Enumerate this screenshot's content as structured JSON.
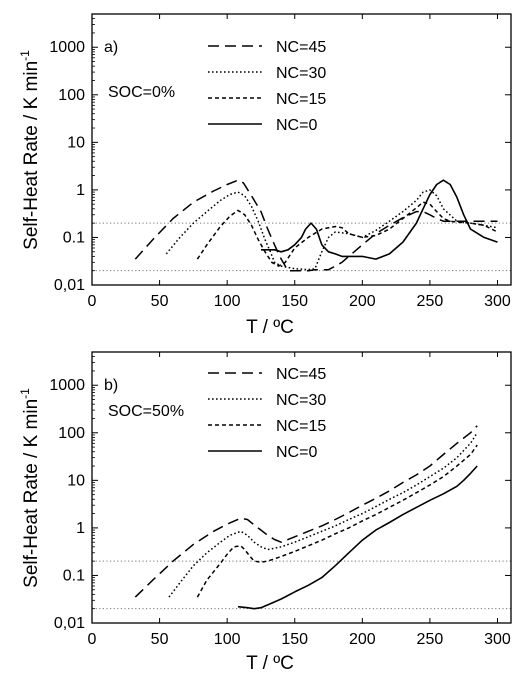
{
  "chart_data": [
    {
      "type": "line",
      "panel_label": "a)",
      "annotation": "SOC=0%",
      "xlabel": "T / ºC",
      "ylabel": "Self-Heat Rate / K min",
      "ylabel_exp": "-1",
      "xlim": [
        0,
        310
      ],
      "ylim": [
        0.01,
        5000
      ],
      "yscale": "log",
      "x_ticks": [
        "0",
        "50",
        "100",
        "150",
        "200",
        "250",
        "300"
      ],
      "y_ticks": [
        "0,01",
        "0.1",
        "1",
        "10",
        "100",
        "1000"
      ],
      "legend_position": "top-center",
      "reference_lines": [
        0.2,
        0.02
      ],
      "series": [
        {
          "name": "NC=45",
          "style": "dashed",
          "x": [
            32,
            45,
            60,
            75,
            90,
            100,
            108,
            112,
            118,
            125,
            130,
            135,
            140,
            145,
            150,
            155,
            160,
            165,
            170,
            175,
            180,
            185,
            190,
            200,
            210,
            220,
            230,
            240,
            245,
            250,
            255,
            260,
            270,
            280,
            290,
            300
          ],
          "y": [
            0.035,
            0.09,
            0.25,
            0.55,
            0.95,
            1.3,
            1.6,
            1.4,
            0.75,
            0.35,
            0.15,
            0.07,
            0.035,
            0.02,
            0.02,
            0.02,
            0.02,
            0.021,
            0.021,
            0.021,
            0.025,
            0.03,
            0.04,
            0.07,
            0.12,
            0.18,
            0.26,
            0.35,
            0.35,
            0.3,
            0.25,
            0.22,
            0.22,
            0.22,
            0.22,
            0.22
          ]
        },
        {
          "name": "NC=30",
          "style": "dotted",
          "x": [
            55,
            65,
            75,
            85,
            95,
            102,
            108,
            113,
            118,
            123,
            128,
            132,
            135,
            140,
            150,
            160,
            165,
            170,
            175,
            180,
            190,
            200,
            210,
            220,
            230,
            240,
            245,
            250,
            255,
            260,
            270,
            280,
            290,
            300
          ],
          "y": [
            0.045,
            0.1,
            0.2,
            0.35,
            0.6,
            0.8,
            0.9,
            0.75,
            0.45,
            0.22,
            0.09,
            0.05,
            0.03,
            0.025,
            0.022,
            0.021,
            0.022,
            0.05,
            0.1,
            0.13,
            0.12,
            0.1,
            0.14,
            0.22,
            0.35,
            0.6,
            0.9,
            1.0,
            0.75,
            0.4,
            0.22,
            0.2,
            0.18,
            0.16
          ]
        },
        {
          "name": "NC=15",
          "style": "short-dashed",
          "x": [
            78,
            85,
            95,
            102,
            108,
            113,
            118,
            123,
            128,
            133,
            138,
            143,
            150,
            160,
            170,
            180,
            185,
            190,
            200,
            210,
            220,
            230,
            240,
            245,
            250,
            255,
            260,
            265,
            270,
            280,
            290,
            300
          ],
          "y": [
            0.035,
            0.07,
            0.17,
            0.28,
            0.37,
            0.3,
            0.18,
            0.09,
            0.05,
            0.03,
            0.025,
            0.03,
            0.06,
            0.1,
            0.15,
            0.17,
            0.16,
            0.12,
            0.1,
            0.11,
            0.15,
            0.25,
            0.42,
            0.55,
            0.5,
            0.35,
            0.25,
            0.22,
            0.21,
            0.2,
            0.18,
            0.13
          ]
        },
        {
          "name": "NC=0",
          "style": "solid",
          "x": [
            125,
            135,
            140,
            145,
            150,
            155,
            158,
            162,
            166,
            170,
            175,
            180,
            185,
            190,
            200,
            210,
            220,
            230,
            240,
            245,
            250,
            255,
            260,
            265,
            270,
            275,
            280,
            290,
            300
          ],
          "y": [
            0.055,
            0.055,
            0.05,
            0.055,
            0.07,
            0.1,
            0.15,
            0.2,
            0.15,
            0.07,
            0.05,
            0.045,
            0.04,
            0.04,
            0.04,
            0.035,
            0.045,
            0.08,
            0.2,
            0.4,
            0.8,
            1.3,
            1.6,
            1.3,
            0.7,
            0.3,
            0.15,
            0.1,
            0.08
          ]
        }
      ]
    },
    {
      "type": "line",
      "panel_label": "b)",
      "annotation": "SOC=50%",
      "xlabel": "T / ºC",
      "ylabel": "Self-Heat Rate / K min",
      "ylabel_exp": "-1",
      "xlim": [
        0,
        310
      ],
      "ylim": [
        0.01,
        5000
      ],
      "yscale": "log",
      "x_ticks": [
        "0",
        "50",
        "100",
        "150",
        "200",
        "250",
        "300"
      ],
      "y_ticks": [
        "0,01",
        "0.1",
        "1",
        "10",
        "100",
        "1000"
      ],
      "legend_position": "top-center",
      "reference_lines": [
        0.2,
        0.02
      ],
      "series": [
        {
          "name": "NC=45",
          "style": "dashed",
          "x": [
            32,
            45,
            60,
            75,
            90,
            100,
            110,
            115,
            120,
            125,
            130,
            135,
            140,
            150,
            160,
            170,
            180,
            190,
            200,
            210,
            220,
            230,
            240,
            250,
            260,
            270,
            280,
            285
          ],
          "y": [
            0.035,
            0.08,
            0.2,
            0.45,
            0.85,
            1.2,
            1.6,
            1.5,
            1.15,
            0.9,
            0.7,
            0.57,
            0.5,
            0.65,
            0.85,
            1.1,
            1.5,
            2.1,
            3.0,
            4.2,
            6.0,
            9.0,
            13,
            20,
            35,
            60,
            100,
            140
          ]
        },
        {
          "name": "NC=30",
          "style": "dotted",
          "x": [
            57,
            65,
            75,
            85,
            95,
            102,
            110,
            115,
            120,
            125,
            130,
            140,
            150,
            160,
            170,
            180,
            190,
            200,
            210,
            220,
            230,
            240,
            250,
            260,
            270,
            280,
            285
          ],
          "y": [
            0.035,
            0.07,
            0.16,
            0.3,
            0.5,
            0.7,
            0.85,
            0.7,
            0.5,
            0.4,
            0.35,
            0.4,
            0.5,
            0.65,
            0.85,
            1.1,
            1.5,
            2.0,
            2.8,
            4.0,
            5.5,
            8.0,
            12,
            18,
            30,
            60,
            100
          ]
        },
        {
          "name": "NC=15",
          "style": "short-dashed",
          "x": [
            78,
            85,
            95,
            100,
            105,
            110,
            113,
            117,
            120,
            125,
            130,
            140,
            150,
            160,
            170,
            180,
            190,
            200,
            210,
            220,
            230,
            240,
            250,
            260,
            270,
            280,
            285
          ],
          "y": [
            0.035,
            0.08,
            0.18,
            0.28,
            0.4,
            0.42,
            0.35,
            0.25,
            0.2,
            0.19,
            0.2,
            0.25,
            0.32,
            0.42,
            0.55,
            0.75,
            1.0,
            1.4,
            1.9,
            2.7,
            3.8,
            5.5,
            8.0,
            12,
            20,
            35,
            55
          ]
        },
        {
          "name": "NC=0",
          "style": "solid",
          "x": [
            108,
            115,
            120,
            125,
            130,
            140,
            150,
            160,
            170,
            180,
            190,
            200,
            210,
            220,
            230,
            240,
            250,
            260,
            270,
            275,
            280,
            285
          ],
          "y": [
            0.022,
            0.021,
            0.02,
            0.021,
            0.024,
            0.032,
            0.045,
            0.062,
            0.09,
            0.16,
            0.3,
            0.55,
            0.9,
            1.3,
            1.9,
            2.7,
            3.8,
            5.2,
            7.5,
            10,
            14,
            20
          ]
        }
      ]
    }
  ]
}
